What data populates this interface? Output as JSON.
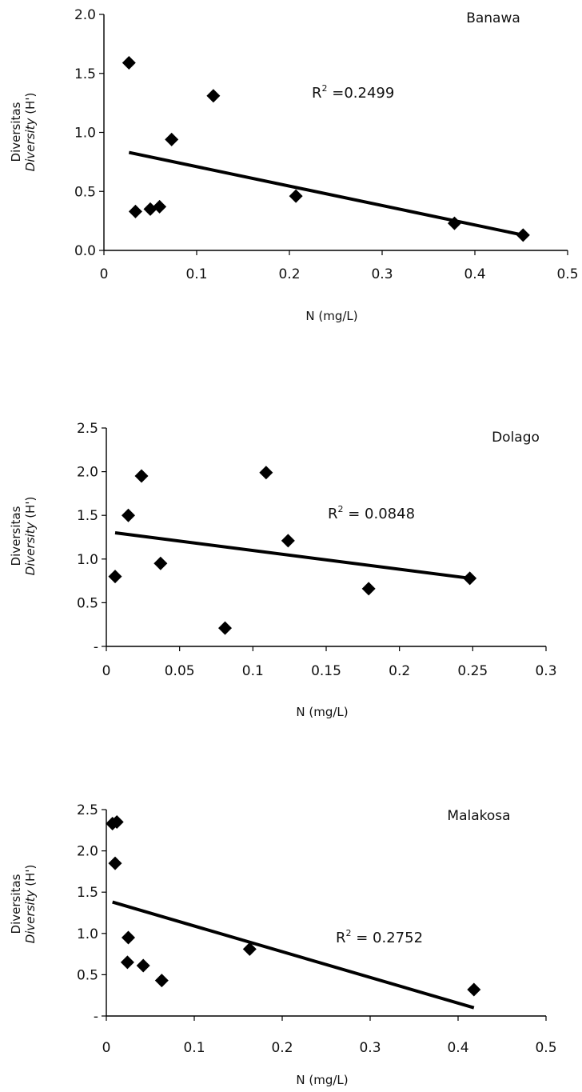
{
  "chart_data": [
    {
      "type": "scatter",
      "title": "Banawa",
      "xlabel": "N (mg/L)",
      "ylabel": "Diversitas",
      "ylabel_italic": "Diversity",
      "ylabel_suffix": " (H')",
      "r2_label": "R",
      "r2_value": " =0.2499",
      "xlim": [
        0,
        0.5
      ],
      "ylim": [
        0,
        2.0
      ],
      "xticks": [
        0,
        0.1,
        0.2,
        0.3,
        0.4,
        0.5
      ],
      "xtick_labels": [
        "0",
        "0.1",
        "0.2",
        "0.3",
        "0.4",
        "0.5"
      ],
      "yticks": [
        0,
        0.5,
        1.0,
        1.5,
        2.0
      ],
      "ytick_labels": [
        "0.0",
        "0.5",
        "1.0",
        "1.5",
        "2.0"
      ],
      "points": [
        {
          "x": 0.027,
          "y": 1.59
        },
        {
          "x": 0.034,
          "y": 0.33
        },
        {
          "x": 0.05,
          "y": 0.35
        },
        {
          "x": 0.06,
          "y": 0.37
        },
        {
          "x": 0.073,
          "y": 0.94
        },
        {
          "x": 0.118,
          "y": 1.31
        },
        {
          "x": 0.207,
          "y": 0.46
        },
        {
          "x": 0.378,
          "y": 0.23
        },
        {
          "x": 0.452,
          "y": 0.13
        }
      ],
      "trendline": [
        [
          0.027,
          0.83
        ],
        [
          0.452,
          0.13
        ]
      ],
      "marker_color": "#000000"
    },
    {
      "type": "scatter",
      "title": "Dolago",
      "xlabel": "N (mg/L)",
      "ylabel": "Diversitas",
      "ylabel_italic": "Diversity",
      "ylabel_suffix": " (H')",
      "r2_label": "R",
      "r2_value": " = 0.0848",
      "xlim": [
        0,
        0.3
      ],
      "ylim": [
        0,
        2.5
      ],
      "xticks": [
        0,
        0.05,
        0.1,
        0.15,
        0.2,
        0.25,
        0.3
      ],
      "xtick_labels": [
        "0",
        "0.05",
        "0.1",
        "0.15",
        "0.2",
        "0.25",
        "0.3"
      ],
      "yticks": [
        0,
        0.5,
        1.0,
        1.5,
        2.0,
        2.5
      ],
      "ytick_labels": [
        "-",
        "0.5",
        "1.0",
        "1.5",
        "2.0",
        "2.5"
      ],
      "points": [
        {
          "x": 0.006,
          "y": 0.8
        },
        {
          "x": 0.015,
          "y": 1.5
        },
        {
          "x": 0.024,
          "y": 1.95
        },
        {
          "x": 0.037,
          "y": 0.95
        },
        {
          "x": 0.081,
          "y": 0.21
        },
        {
          "x": 0.109,
          "y": 1.99
        },
        {
          "x": 0.124,
          "y": 1.21
        },
        {
          "x": 0.179,
          "y": 0.66
        },
        {
          "x": 0.248,
          "y": 0.78
        }
      ],
      "trendline": [
        [
          0.006,
          1.3
        ],
        [
          0.248,
          0.78
        ]
      ],
      "marker_color": "#000000"
    },
    {
      "type": "scatter",
      "title": "Malakosa",
      "xlabel": "N (mg/L)",
      "ylabel": "Diversitas",
      "ylabel_italic": "Diversity",
      "ylabel_suffix": " (H')",
      "r2_label": "R",
      "r2_value": " = 0.2752",
      "xlim": [
        0,
        0.5
      ],
      "ylim": [
        0,
        2.5
      ],
      "xticks": [
        0,
        0.1,
        0.2,
        0.3,
        0.4,
        0.5
      ],
      "xtick_labels": [
        "0",
        "0.1",
        "0.2",
        "0.3",
        "0.4",
        "0.5"
      ],
      "yticks": [
        0,
        0.5,
        1.0,
        1.5,
        2.0,
        2.5
      ],
      "ytick_labels": [
        "-",
        "0.5",
        "1.0",
        "1.5",
        "2.0",
        "2.5"
      ],
      "points": [
        {
          "x": 0.007,
          "y": 2.33
        },
        {
          "x": 0.012,
          "y": 2.35
        },
        {
          "x": 0.01,
          "y": 1.85
        },
        {
          "x": 0.025,
          "y": 0.95
        },
        {
          "x": 0.024,
          "y": 0.65
        },
        {
          "x": 0.042,
          "y": 0.61
        },
        {
          "x": 0.063,
          "y": 0.43
        },
        {
          "x": 0.163,
          "y": 0.81
        },
        {
          "x": 0.418,
          "y": 0.32
        }
      ],
      "trendline": [
        [
          0.007,
          1.38
        ],
        [
          0.418,
          0.1
        ]
      ],
      "marker_color": "#000000"
    }
  ]
}
